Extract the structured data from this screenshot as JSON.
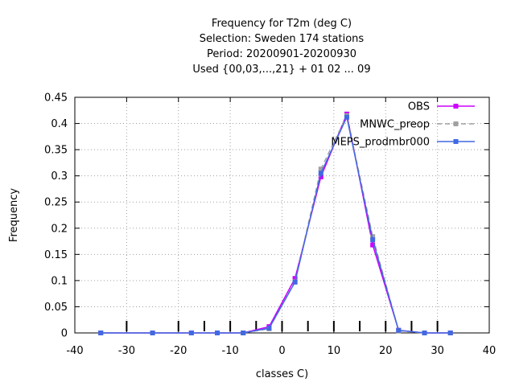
{
  "chart_data": {
    "type": "line",
    "title_lines": [
      "Frequency  for T2m (deg C)",
      "Selection: Sweden    174 stations",
      "Period: 20200901-20200930",
      "Used {00,03,...,21} + 01 02 ... 09"
    ],
    "xlabel": "classes C)",
    "ylabel": "Frequency",
    "xlim": [
      -40,
      40
    ],
    "ylim": [
      0,
      0.45
    ],
    "xticks": [
      -40,
      -30,
      -20,
      -10,
      0,
      10,
      20,
      30,
      40
    ],
    "yticks": [
      0,
      0.05,
      0.1,
      0.15,
      0.2,
      0.25,
      0.3,
      0.35,
      0.4,
      0.45
    ],
    "x_tick_labels": [
      "-40",
      "-30",
      "-20",
      "-10",
      "0",
      "10",
      "20",
      "30",
      "40"
    ],
    "y_tick_labels": [
      "0",
      "0.05",
      "0.1",
      "0.15",
      "0.2",
      "0.25",
      "0.3",
      "0.35",
      "0.4",
      "0.45"
    ],
    "class_boundaries": [
      -30,
      -20,
      -15,
      -10,
      -5,
      0,
      5,
      10,
      15,
      20,
      25,
      30
    ],
    "grid": true,
    "legend_position": "top-right",
    "x": [
      -35,
      -25,
      -17.5,
      -12.5,
      -7.5,
      -2.5,
      2.5,
      7.5,
      12.5,
      17.5,
      22.5,
      27.5,
      32.5
    ],
    "series": [
      {
        "name": "OBS",
        "color": "#cc00ff",
        "dash": false,
        "values": [
          0,
          0,
          0,
          0,
          0,
          0.012,
          0.104,
          0.298,
          0.418,
          0.168,
          0.005,
          0,
          0
        ]
      },
      {
        "name": "MNWC_preop",
        "color": "#a0a0a0",
        "dash": true,
        "values": [
          0,
          0,
          0,
          0,
          0,
          0.008,
          0.098,
          0.313,
          0.415,
          0.184,
          0.004,
          0,
          0
        ]
      },
      {
        "name": "MEPS_prodmbr000",
        "color": "#4169e1",
        "dash": false,
        "values": [
          0,
          0,
          0,
          0,
          0,
          0.009,
          0.097,
          0.305,
          0.412,
          0.178,
          0.005,
          0,
          0
        ]
      }
    ]
  }
}
